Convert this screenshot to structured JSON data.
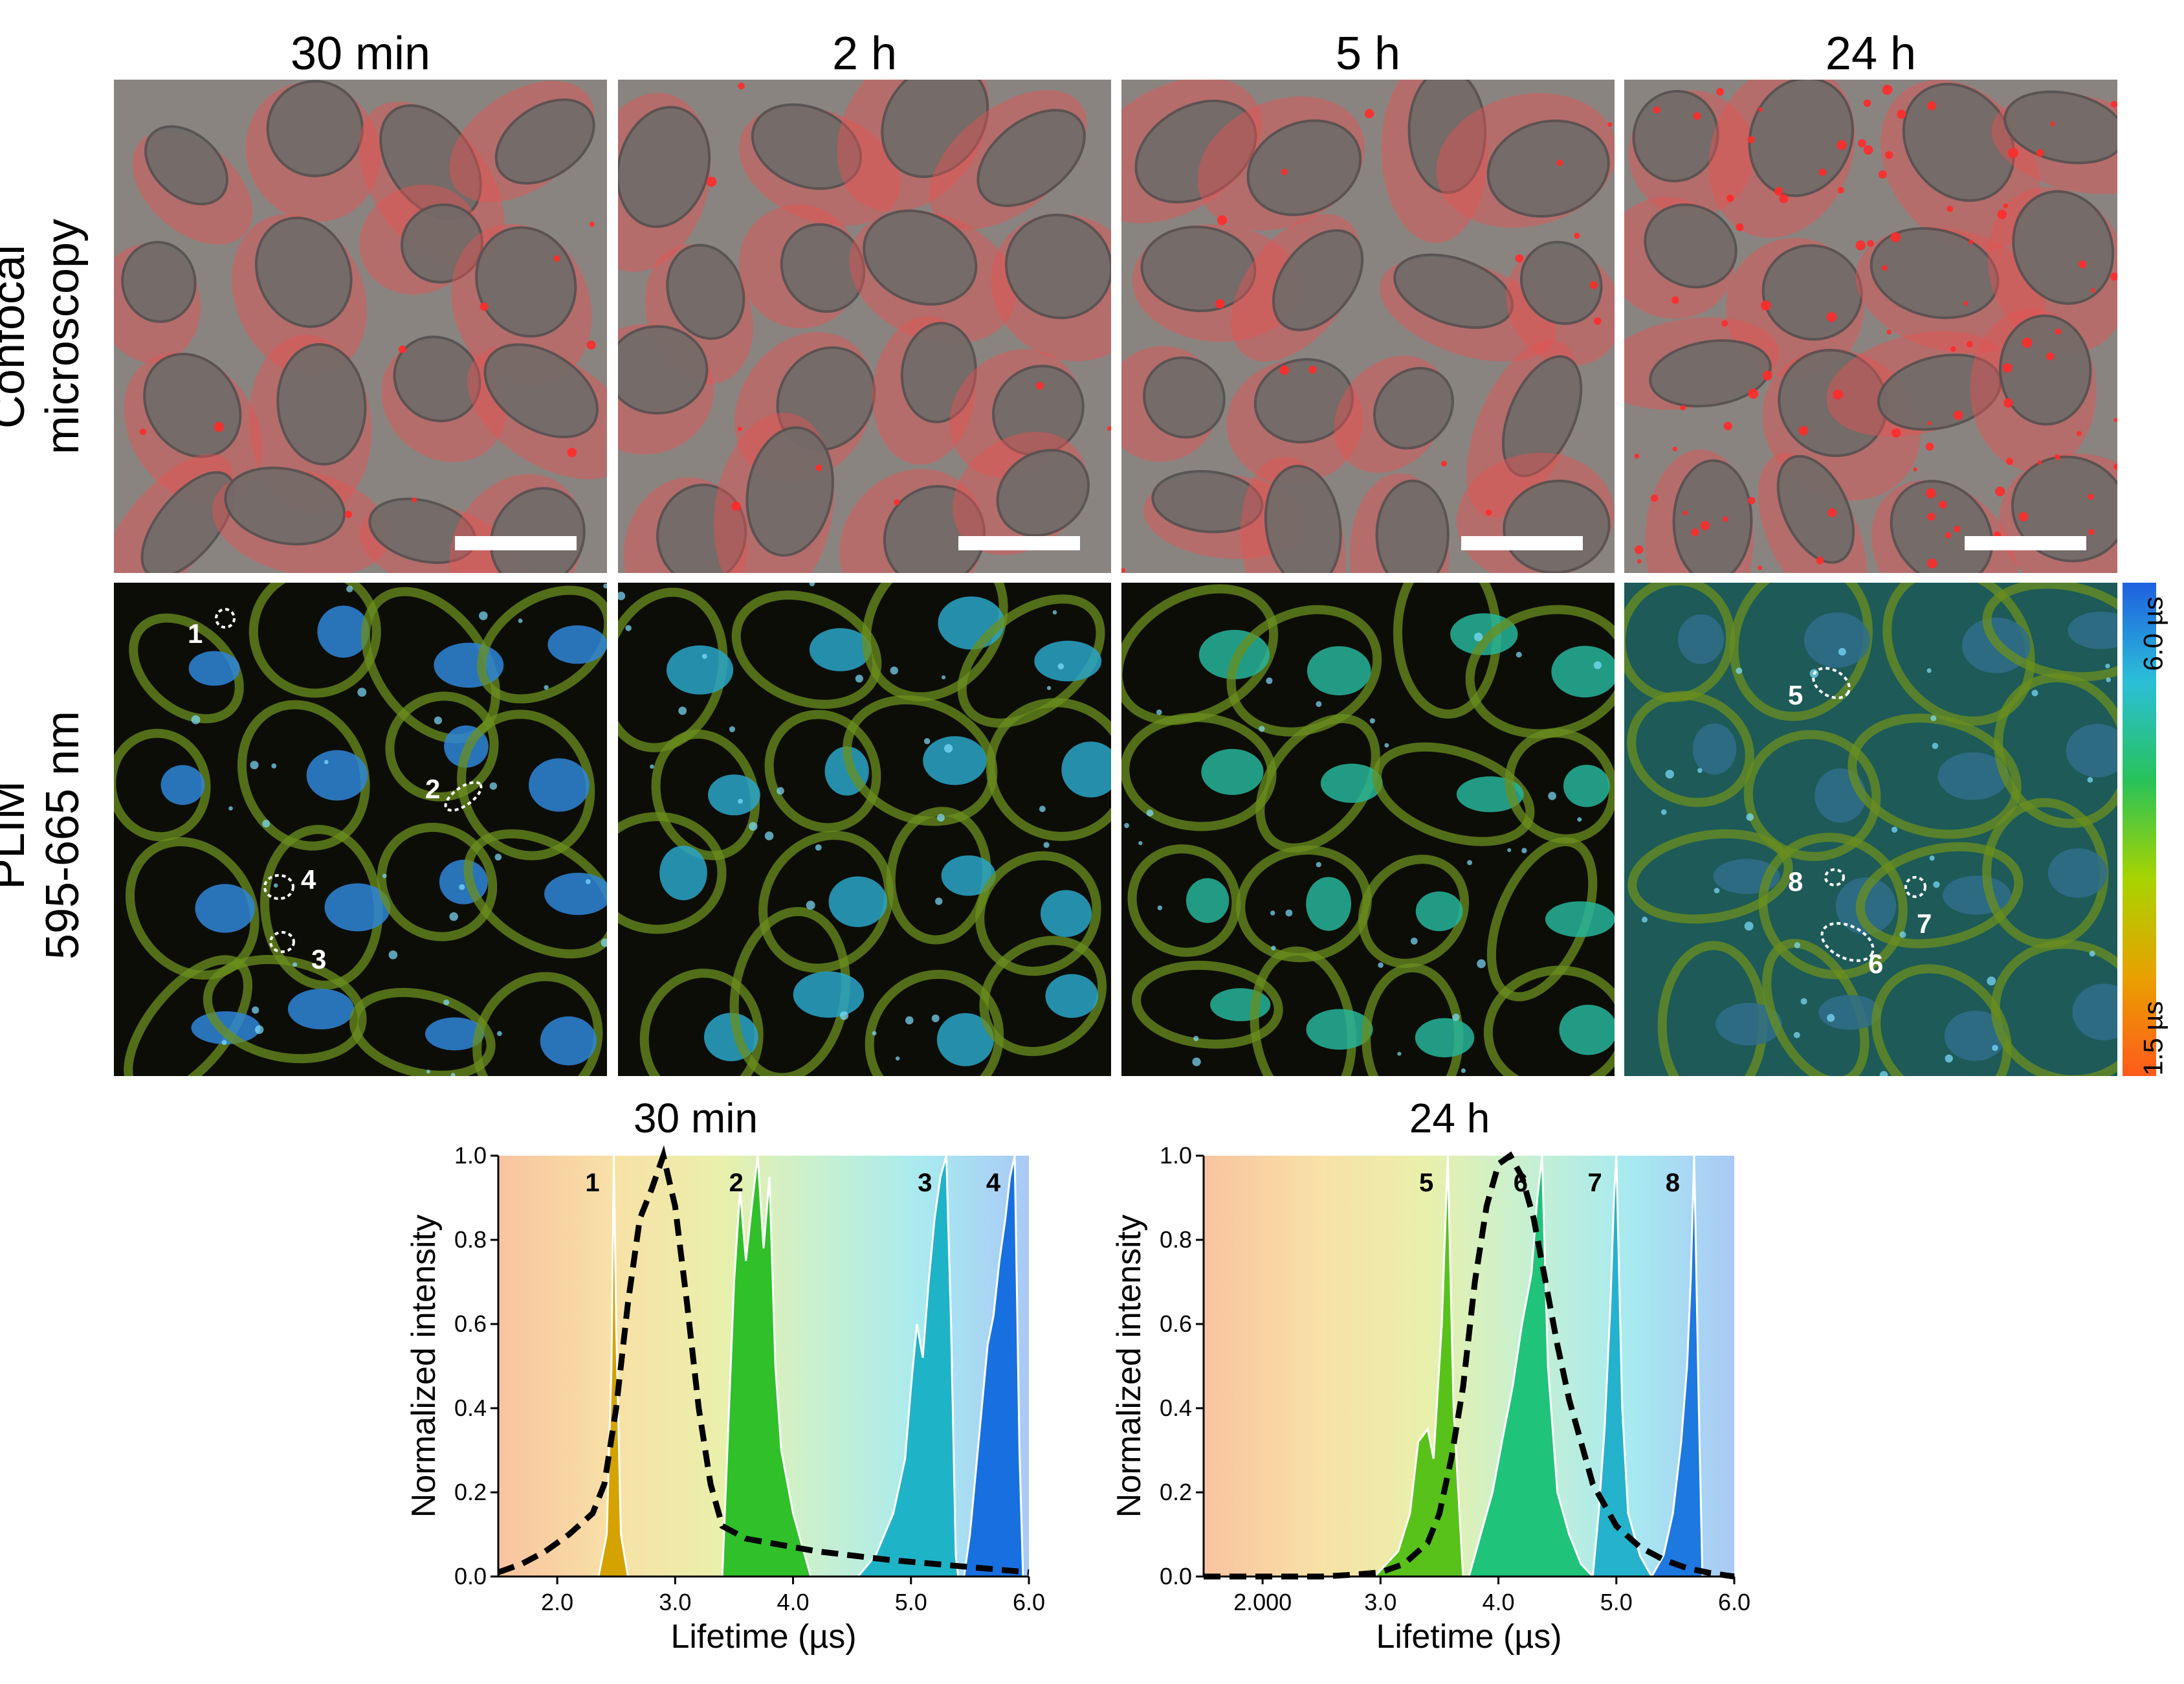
{
  "columns": [
    {
      "title": "30 min"
    },
    {
      "title": "2 h"
    },
    {
      "title": "5 h"
    },
    {
      "title": "24 h"
    }
  ],
  "rows": [
    {
      "line1": "Confocal",
      "line2": "microscopy"
    },
    {
      "line1": "PLIM",
      "line2": "595-665 nm"
    }
  ],
  "colorbar": {
    "top_label": "6.0 µs",
    "bottom_label": "1.5 µs",
    "colors": [
      "#1f5fe0",
      "#2bbfd8",
      "#27c25a",
      "#a8d400",
      "#e9a000",
      "#ff5a1a"
    ]
  },
  "roi_labels": {
    "panel_30min": [
      "1",
      "2",
      "3",
      "4"
    ],
    "panel_24h": [
      "5",
      "6",
      "7",
      "8"
    ]
  },
  "colors": {
    "confocal_bg": "#8a8480",
    "confocal_red": "#e65252",
    "plim_bg": "#0d0d08",
    "cyto": "#6b8f1e",
    "nucleus": "#2f86d8",
    "dash": "#000000"
  },
  "chart_data": [
    {
      "type": "area",
      "title": "30 min",
      "xlabel": "Lifetime (µs)",
      "ylabel": "Normalized intensity",
      "xlim": [
        1.5,
        6.0
      ],
      "ylim": [
        0.0,
        1.0
      ],
      "xticks": [
        "2.0",
        "3.0",
        "4.0",
        "5.0",
        "6.0"
      ],
      "yticks": [
        "0.0",
        "0.2",
        "0.4",
        "0.6",
        "0.8",
        "1.0"
      ],
      "peaks": [
        {
          "label": "1",
          "color": "#d4a300",
          "points": [
            [
              2.35,
              0
            ],
            [
              2.42,
              0.1
            ],
            [
              2.46,
              0.5
            ],
            [
              2.48,
              1.0
            ],
            [
              2.5,
              0.6
            ],
            [
              2.54,
              0.1
            ],
            [
              2.6,
              0
            ]
          ]
        },
        {
          "label": "2",
          "color": "#2fc02a",
          "points": [
            [
              3.4,
              0
            ],
            [
              3.45,
              0.35
            ],
            [
              3.5,
              0.7
            ],
            [
              3.55,
              0.92
            ],
            [
              3.6,
              0.75
            ],
            [
              3.65,
              0.88
            ],
            [
              3.7,
              1.0
            ],
            [
              3.75,
              0.78
            ],
            [
              3.8,
              0.95
            ],
            [
              3.85,
              0.5
            ],
            [
              3.9,
              0.3
            ],
            [
              4.0,
              0.15
            ],
            [
              4.1,
              0.05
            ],
            [
              4.15,
              0
            ]
          ]
        },
        {
          "label": "3",
          "color": "#1fb3c8",
          "points": [
            [
              4.55,
              0
            ],
            [
              4.7,
              0.05
            ],
            [
              4.85,
              0.15
            ],
            [
              4.95,
              0.28
            ],
            [
              5.0,
              0.45
            ],
            [
              5.05,
              0.6
            ],
            [
              5.1,
              0.52
            ],
            [
              5.15,
              0.7
            ],
            [
              5.2,
              0.85
            ],
            [
              5.25,
              0.95
            ],
            [
              5.3,
              1.0
            ],
            [
              5.34,
              0.6
            ],
            [
              5.38,
              0.05
            ],
            [
              5.4,
              0
            ]
          ]
        },
        {
          "label": "4",
          "color": "#1870e0",
          "points": [
            [
              5.45,
              0
            ],
            [
              5.5,
              0.1
            ],
            [
              5.55,
              0.25
            ],
            [
              5.6,
              0.4
            ],
            [
              5.65,
              0.55
            ],
            [
              5.7,
              0.62
            ],
            [
              5.75,
              0.75
            ],
            [
              5.8,
              0.85
            ],
            [
              5.84,
              0.95
            ],
            [
              5.88,
              1.0
            ],
            [
              5.92,
              0.3
            ],
            [
              5.95,
              0
            ]
          ]
        }
      ],
      "dashed": {
        "x": [
          1.5,
          1.7,
          1.9,
          2.1,
          2.3,
          2.4,
          2.5,
          2.6,
          2.7,
          2.8,
          2.9,
          3.0,
          3.1,
          3.2,
          3.3,
          3.4,
          3.6,
          3.8,
          4.0,
          4.2,
          4.5,
          4.8,
          5.0,
          5.2,
          5.4,
          5.6,
          5.8,
          6.0
        ],
        "y": [
          0.01,
          0.03,
          0.06,
          0.1,
          0.15,
          0.22,
          0.4,
          0.65,
          0.85,
          0.92,
          1.0,
          0.88,
          0.65,
          0.4,
          0.22,
          0.12,
          0.09,
          0.08,
          0.07,
          0.06,
          0.05,
          0.04,
          0.035,
          0.03,
          0.025,
          0.02,
          0.015,
          0.01
        ]
      }
    },
    {
      "type": "area",
      "title": "24 h",
      "xlabel": "Lifetime (µs)",
      "ylabel": "Normalized intensity",
      "xlim": [
        1.5,
        6.0
      ],
      "ylim": [
        0.0,
        1.0
      ],
      "xticks": [
        "2.000",
        "3.0",
        "4.0",
        "5.0",
        "6.0"
      ],
      "yticks": [
        "0.0",
        "0.2",
        "0.4",
        "0.6",
        "0.8",
        "1.0"
      ],
      "peaks": [
        {
          "label": "5",
          "color": "#58c21a",
          "points": [
            [
              2.95,
              0
            ],
            [
              3.05,
              0.03
            ],
            [
              3.15,
              0.06
            ],
            [
              3.25,
              0.15
            ],
            [
              3.32,
              0.32
            ],
            [
              3.4,
              0.35
            ],
            [
              3.45,
              0.28
            ],
            [
              3.52,
              0.6
            ],
            [
              3.57,
              1.0
            ],
            [
              3.62,
              0.4
            ],
            [
              3.7,
              0
            ]
          ]
        },
        {
          "label": "6",
          "color": "#1fc37a",
          "points": [
            [
              3.75,
              0
            ],
            [
              3.85,
              0.1
            ],
            [
              3.95,
              0.2
            ],
            [
              4.05,
              0.35
            ],
            [
              4.12,
              0.45
            ],
            [
              4.2,
              0.6
            ],
            [
              4.28,
              0.72
            ],
            [
              4.33,
              0.9
            ],
            [
              4.37,
              1.0
            ],
            [
              4.42,
              0.5
            ],
            [
              4.5,
              0.2
            ],
            [
              4.6,
              0.1
            ],
            [
              4.7,
              0.03
            ],
            [
              4.8,
              0
            ]
          ]
        },
        {
          "label": "7",
          "color": "#25b2cc",
          "points": [
            [
              4.8,
              0
            ],
            [
              4.85,
              0.15
            ],
            [
              4.9,
              0.35
            ],
            [
              4.95,
              0.65
            ],
            [
              4.98,
              0.9
            ],
            [
              5.0,
              1.0
            ],
            [
              5.05,
              0.4
            ],
            [
              5.1,
              0.15
            ],
            [
              5.2,
              0.05
            ],
            [
              5.3,
              0
            ]
          ]
        },
        {
          "label": "8",
          "color": "#1d78e0",
          "points": [
            [
              5.3,
              0
            ],
            [
              5.4,
              0.05
            ],
            [
              5.48,
              0.15
            ],
            [
              5.55,
              0.32
            ],
            [
              5.6,
              0.5
            ],
            [
              5.63,
              0.7
            ],
            [
              5.66,
              1.0
            ],
            [
              5.7,
              0.4
            ],
            [
              5.73,
              0
            ]
          ]
        }
      ],
      "dashed": {
        "x": [
          1.5,
          2.0,
          2.5,
          2.8,
          3.0,
          3.2,
          3.4,
          3.5,
          3.6,
          3.7,
          3.8,
          3.9,
          4.0,
          4.1,
          4.2,
          4.3,
          4.4,
          4.5,
          4.6,
          4.7,
          4.8,
          5.0,
          5.2,
          5.4,
          5.6,
          5.8,
          6.0
        ],
        "y": [
          0.0,
          0.0,
          0.0,
          0.005,
          0.01,
          0.03,
          0.08,
          0.15,
          0.28,
          0.45,
          0.7,
          0.88,
          0.98,
          1.0,
          0.95,
          0.85,
          0.7,
          0.55,
          0.42,
          0.32,
          0.22,
          0.12,
          0.07,
          0.04,
          0.02,
          0.008,
          0.0
        ]
      }
    }
  ]
}
